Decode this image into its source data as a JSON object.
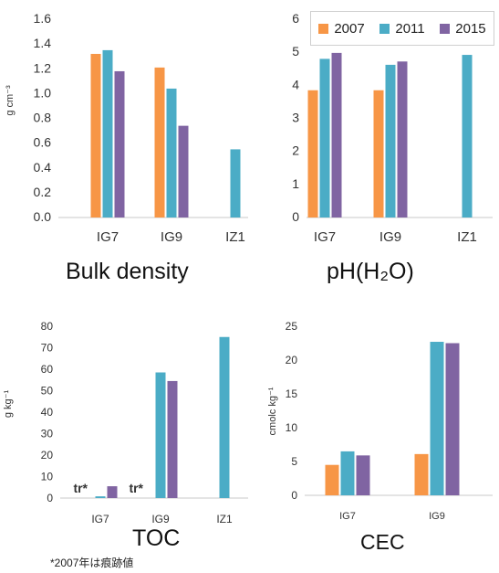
{
  "colors": {
    "2007": "#F79646",
    "2011": "#4BACC6",
    "2015": "#8064A2"
  },
  "legend": {
    "items": [
      {
        "label": "2007",
        "color": "#F79646"
      },
      {
        "label": "2011",
        "color": "#4BACC6"
      },
      {
        "label": "2015",
        "color": "#8064A2"
      }
    ]
  },
  "footnote": "*2007年は痕跡値",
  "chart_data": [
    {
      "type": "bar",
      "title": "Bulk density",
      "ylabel": "g cm⁻³",
      "ylim": [
        0,
        1.6
      ],
      "yticks": [
        "0.0",
        "0.2",
        "0.4",
        "0.6",
        "0.8",
        "1.0",
        "1.2",
        "1.4",
        "1.6"
      ],
      "categories": [
        "IG7",
        "IG9",
        "IZ1"
      ],
      "series": [
        {
          "name": "2007",
          "values": [
            1.32,
            1.21,
            null
          ]
        },
        {
          "name": "2011",
          "values": [
            1.35,
            1.04,
            0.55
          ]
        },
        {
          "name": "2015",
          "values": [
            1.18,
            0.74,
            null
          ]
        }
      ]
    },
    {
      "type": "bar",
      "title": "pH(H₂O)",
      "ylim": [
        0,
        6
      ],
      "yticks": [
        "0",
        "1",
        "2",
        "3",
        "4",
        "5",
        "6"
      ],
      "categories": [
        "IG7",
        "IG9",
        "IZ1"
      ],
      "series": [
        {
          "name": "2007",
          "values": [
            3.85,
            3.85,
            null
          ]
        },
        {
          "name": "2011",
          "values": [
            4.8,
            4.62,
            4.92
          ]
        },
        {
          "name": "2015",
          "values": [
            4.98,
            4.72,
            null
          ]
        }
      ]
    },
    {
      "type": "bar",
      "title": "TOC",
      "ylabel": "g kg⁻¹",
      "ylim": [
        0,
        80
      ],
      "yticks": [
        "0",
        "10",
        "20",
        "30",
        "40",
        "50",
        "60",
        "70",
        "80"
      ],
      "categories": [
        "IG7",
        "IG9",
        "IZ1"
      ],
      "series": [
        {
          "name": "2007",
          "values": [
            null,
            null,
            null
          ]
        },
        {
          "name": "2011",
          "values": [
            0.8,
            58.5,
            75
          ]
        },
        {
          "name": "2015",
          "values": [
            5.5,
            54.5,
            null
          ]
        }
      ],
      "annotations": [
        "tr*",
        "tr*"
      ]
    },
    {
      "type": "bar",
      "title": "CEC",
      "ylabel": "cmolc kg⁻¹",
      "ylim": [
        0,
        25
      ],
      "yticks": [
        "0",
        "5",
        "10",
        "15",
        "20",
        "25"
      ],
      "categories": [
        "IG7",
        "IG9"
      ],
      "series": [
        {
          "name": "2007",
          "values": [
            4.5,
            6.1
          ]
        },
        {
          "name": "2011",
          "values": [
            6.5,
            22.7
          ]
        },
        {
          "name": "2015",
          "values": [
            5.9,
            22.5
          ]
        }
      ]
    }
  ]
}
